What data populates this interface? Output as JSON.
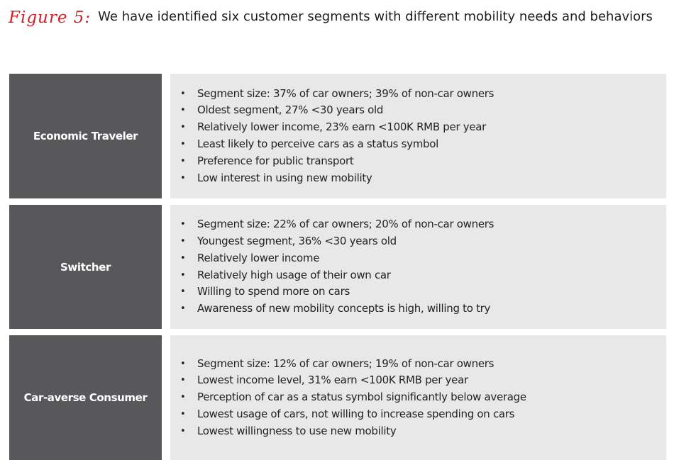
{
  "figure": {
    "label": "Figure 5:",
    "title": "We have identified six customer segments with different mobility needs and behaviors"
  },
  "colors": {
    "label_red": "#d21f26",
    "segment_name_bg": "#58585a",
    "detail_bg": "#e8e8e8"
  },
  "segments": [
    {
      "name": "Economic Traveler",
      "bullets": [
        "Segment size: 37% of car owners; 39% of non-car owners",
        "Oldest segment, 27% <30 years old",
        "Relatively lower income, 23% earn <100K RMB per year",
        "Least likely to perceive cars as a status symbol",
        "Preference for public transport",
        "Low interest in using new mobility"
      ]
    },
    {
      "name": "Switcher",
      "bullets": [
        "Segment size: 22% of car owners; 20% of non-car owners",
        "Youngest segment, 36% <30 years old",
        "Relatively lower income",
        "Relatively high usage of their own car",
        "Willing to spend more on cars",
        "Awareness of new mobility concepts is high, willing to try"
      ]
    },
    {
      "name": "Car-averse Consumer",
      "bullets": [
        "Segment size: 12% of car owners; 19% of non-car owners",
        "Lowest income level, 31% earn <100K RMB per year",
        "Perception of car as a status symbol significantly below average",
        "Lowest usage of cars, not willing to increase spending on cars",
        "Lowest willingness to use new mobility"
      ]
    }
  ]
}
